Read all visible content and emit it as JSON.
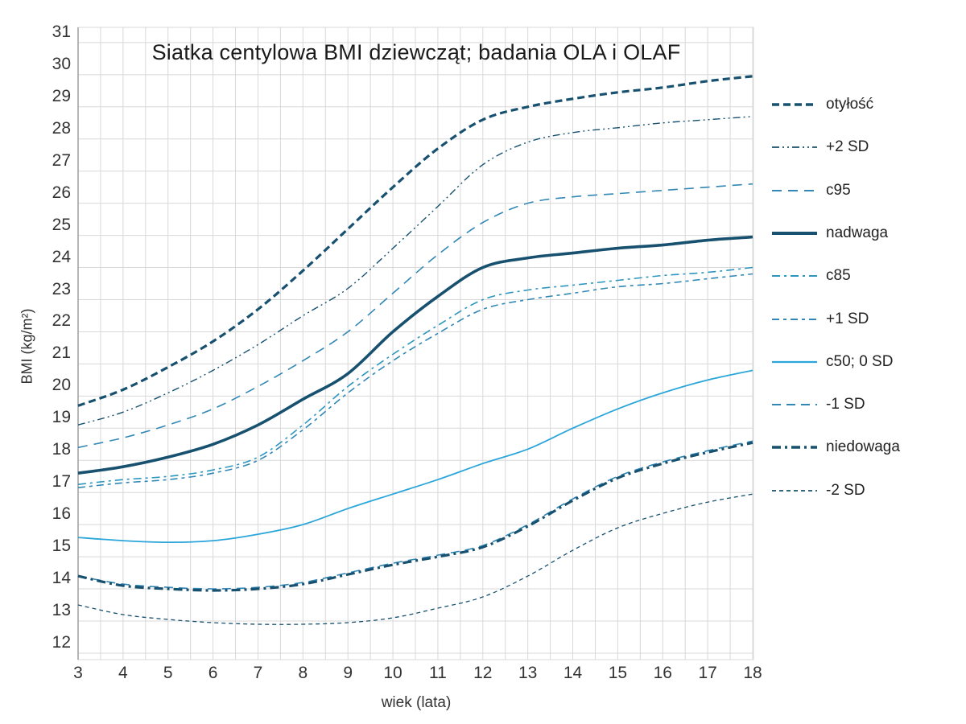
{
  "title": "Siatka centylowa BMI dziewcząt; badania OLA i OLAF",
  "x_axis": {
    "label": "wiek (lata)",
    "ticks": [
      3,
      4,
      5,
      6,
      7,
      8,
      9,
      10,
      11,
      12,
      13,
      14,
      15,
      16,
      17,
      18
    ]
  },
  "y_axis": {
    "label": "BMI (kg/m²)",
    "ticks": [
      31,
      30,
      29,
      28,
      27,
      26,
      25,
      24,
      23,
      22,
      21,
      20,
      19,
      18,
      17,
      16,
      15,
      14,
      13,
      12
    ]
  },
  "colors": {
    "dark": "#17516F",
    "steel": "#3187B5",
    "light": "#2D96BE",
    "bright": "#2BA6DA",
    "grid": "#d8d8d8",
    "spine": "#9e9e9e",
    "text": "#333333"
  },
  "chart_data": {
    "type": "line",
    "title": "Siatka centylowa BMI dziewcząt; badania OLA i OLAF",
    "xlabel": "wiek (lata)",
    "ylabel": "BMI (kg/m²)",
    "xlim": [
      3,
      18
    ],
    "ylim": [
      11.8,
      31.5
    ],
    "grid": "on; vertical every 0.5 year, horizontal every 1 BMI unit",
    "legend_position": "right",
    "x": [
      3,
      4,
      5,
      6,
      7,
      8,
      9,
      10,
      11,
      12,
      13,
      14,
      15,
      16,
      17,
      18
    ],
    "series": [
      {
        "name": "otylosc",
        "label": "otyłość",
        "color": "#17516F",
        "width": 3.2,
        "dash": "9 5",
        "values": [
          19.7,
          20.2,
          20.9,
          21.7,
          22.7,
          23.9,
          25.2,
          26.5,
          27.7,
          28.6,
          29.0,
          29.25,
          29.45,
          29.6,
          29.8,
          29.95
        ]
      },
      {
        "name": "plus2sd",
        "label": "+2 SD",
        "color": "#17516F",
        "width": 1.4,
        "dash": "9 4 2 4 2 4",
        "values": [
          19.1,
          19.5,
          20.1,
          20.8,
          21.6,
          22.5,
          23.35,
          24.6,
          25.9,
          27.2,
          27.9,
          28.2,
          28.35,
          28.5,
          28.6,
          28.7
        ]
      },
      {
        "name": "c95",
        "label": "c95",
        "color": "#3187B5",
        "width": 1.6,
        "dash": "12 8",
        "values": [
          18.4,
          18.7,
          19.1,
          19.6,
          20.3,
          21.1,
          22.0,
          23.2,
          24.4,
          25.4,
          26.0,
          26.2,
          26.3,
          26.4,
          26.5,
          26.6
        ]
      },
      {
        "name": "nadwaga",
        "label": "nadwaga",
        "color": "#17516F",
        "width": 3.6,
        "dash": "",
        "values": [
          17.6,
          17.8,
          18.1,
          18.5,
          19.1,
          19.9,
          20.7,
          22.0,
          23.1,
          24.0,
          24.3,
          24.45,
          24.6,
          24.7,
          24.85,
          24.95
        ]
      },
      {
        "name": "c85",
        "label": "c85",
        "color": "#2D96BE",
        "width": 1.6,
        "dash": "10 5 3 5",
        "values": [
          17.25,
          17.4,
          17.5,
          17.7,
          18.1,
          19.1,
          20.3,
          21.3,
          22.2,
          23.0,
          23.3,
          23.45,
          23.6,
          23.75,
          23.85,
          24.0
        ]
      },
      {
        "name": "plus1sd",
        "label": "+1 SD",
        "color": "#3187B5",
        "width": 1.6,
        "dash": "9 5 4 5",
        "values": [
          17.15,
          17.3,
          17.4,
          17.6,
          18.0,
          18.95,
          20.1,
          21.1,
          21.95,
          22.7,
          23.0,
          23.2,
          23.4,
          23.5,
          23.65,
          23.8
        ]
      },
      {
        "name": "c50",
        "label": "c50; 0 SD",
        "color": "#2BA6DA",
        "width": 1.8,
        "dash": "",
        "values": [
          15.6,
          15.5,
          15.45,
          15.5,
          15.7,
          16.0,
          16.5,
          16.95,
          17.4,
          17.9,
          18.35,
          19.0,
          19.6,
          20.1,
          20.5,
          20.8
        ]
      },
      {
        "name": "minus1sd",
        "label": "-1 SD",
        "color": "#3187B5",
        "width": 1.6,
        "dash": "11 7",
        "values": [
          14.4,
          14.15,
          14.05,
          14.0,
          14.05,
          14.2,
          14.5,
          14.8,
          15.05,
          15.35,
          16.0,
          16.8,
          17.5,
          17.95,
          18.3,
          18.6
        ]
      },
      {
        "name": "niedowaga",
        "label": "niedowaga",
        "color": "#17516F",
        "width": 3.2,
        "dash": "11 5 3 5",
        "values": [
          14.4,
          14.1,
          14.0,
          13.95,
          14.0,
          14.15,
          14.45,
          14.75,
          15.0,
          15.3,
          15.95,
          16.75,
          17.45,
          17.9,
          18.25,
          18.55
        ]
      },
      {
        "name": "minus2sd",
        "label": "-2 SD",
        "color": "#17516F",
        "width": 1.3,
        "dash": "5 4",
        "values": [
          13.5,
          13.2,
          13.05,
          12.95,
          12.9,
          12.9,
          12.95,
          13.1,
          13.4,
          13.75,
          14.4,
          15.2,
          15.9,
          16.35,
          16.7,
          16.95
        ]
      }
    ]
  },
  "legend": {
    "items": [
      "otyłość",
      "+2 SD",
      "c95",
      "nadwaga",
      "c85",
      "+1 SD",
      "c50; 0 SD",
      "-1 SD",
      "niedowaga",
      "-2 SD"
    ]
  }
}
